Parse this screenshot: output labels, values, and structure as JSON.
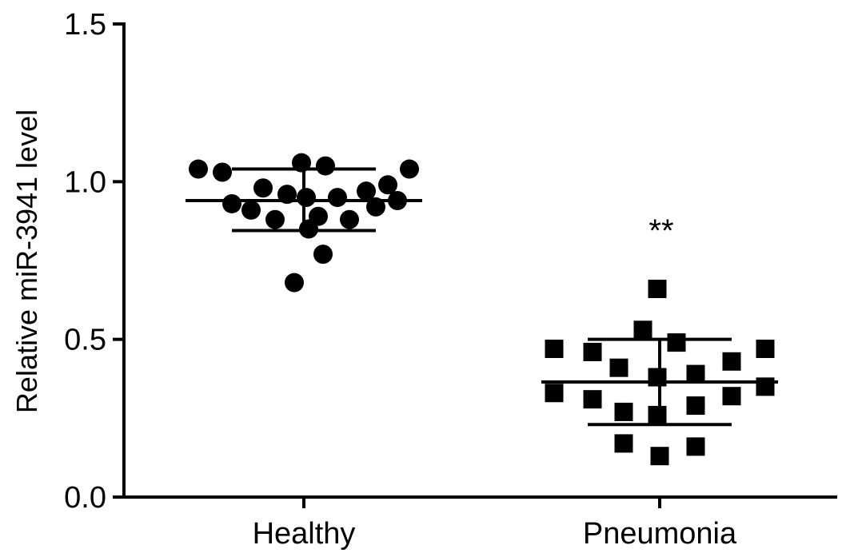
{
  "chart_data": {
    "type": "scatter",
    "title": "",
    "xlabel": "",
    "ylabel": "Relative miR-3941 level",
    "ylim": [
      0,
      1.5
    ],
    "yticks": [
      "0.0",
      "0.5",
      "1.0",
      "1.5"
    ],
    "grid": false,
    "legend": "none",
    "categories": [
      "Healthy",
      "Pneumonia"
    ],
    "series": [
      {
        "category": "Healthy",
        "marker": "circle",
        "mean": 0.94,
        "sd_upper": 1.04,
        "sd_lower": 0.845,
        "points": [
          {
            "x_offset": -2.2,
            "y": 1.04
          },
          {
            "x_offset": -1.7,
            "y": 1.03
          },
          {
            "x_offset": -1.5,
            "y": 0.93
          },
          {
            "x_offset": -1.1,
            "y": 0.91
          },
          {
            "x_offset": -0.85,
            "y": 0.98
          },
          {
            "x_offset": -0.6,
            "y": 0.88
          },
          {
            "x_offset": -0.35,
            "y": 0.96
          },
          {
            "x_offset": -0.2,
            "y": 0.68
          },
          {
            "x_offset": -0.05,
            "y": 1.06
          },
          {
            "x_offset": 0.05,
            "y": 0.95
          },
          {
            "x_offset": 0.1,
            "y": 0.85
          },
          {
            "x_offset": 0.3,
            "y": 0.89
          },
          {
            "x_offset": 0.4,
            "y": 0.77
          },
          {
            "x_offset": 0.45,
            "y": 1.05
          },
          {
            "x_offset": 0.7,
            "y": 0.95
          },
          {
            "x_offset": 0.95,
            "y": 0.88
          },
          {
            "x_offset": 1.3,
            "y": 0.97
          },
          {
            "x_offset": 1.5,
            "y": 0.92
          },
          {
            "x_offset": 1.75,
            "y": 0.99
          },
          {
            "x_offset": 1.95,
            "y": 0.94
          },
          {
            "x_offset": 2.2,
            "y": 1.04
          }
        ]
      },
      {
        "category": "Pneumonia",
        "marker": "square",
        "mean": 0.365,
        "sd_upper": 0.5,
        "sd_lower": 0.23,
        "annotation": "**",
        "points": [
          {
            "x_offset": -2.2,
            "y": 0.47
          },
          {
            "x_offset": -2.2,
            "y": 0.33
          },
          {
            "x_offset": -1.4,
            "y": 0.46
          },
          {
            "x_offset": -1.4,
            "y": 0.31
          },
          {
            "x_offset": -0.85,
            "y": 0.41
          },
          {
            "x_offset": -0.75,
            "y": 0.27
          },
          {
            "x_offset": -0.75,
            "y": 0.17
          },
          {
            "x_offset": -0.35,
            "y": 0.53
          },
          {
            "x_offset": -0.05,
            "y": 0.66
          },
          {
            "x_offset": -0.05,
            "y": 0.38
          },
          {
            "x_offset": -0.05,
            "y": 0.26
          },
          {
            "x_offset": 0.0,
            "y": 0.13
          },
          {
            "x_offset": 0.35,
            "y": 0.49
          },
          {
            "x_offset": 0.75,
            "y": 0.39
          },
          {
            "x_offset": 0.75,
            "y": 0.29
          },
          {
            "x_offset": 0.75,
            "y": 0.16
          },
          {
            "x_offset": 1.5,
            "y": 0.43
          },
          {
            "x_offset": 1.5,
            "y": 0.32
          },
          {
            "x_offset": 2.2,
            "y": 0.47
          },
          {
            "x_offset": 2.2,
            "y": 0.35
          }
        ]
      }
    ]
  }
}
